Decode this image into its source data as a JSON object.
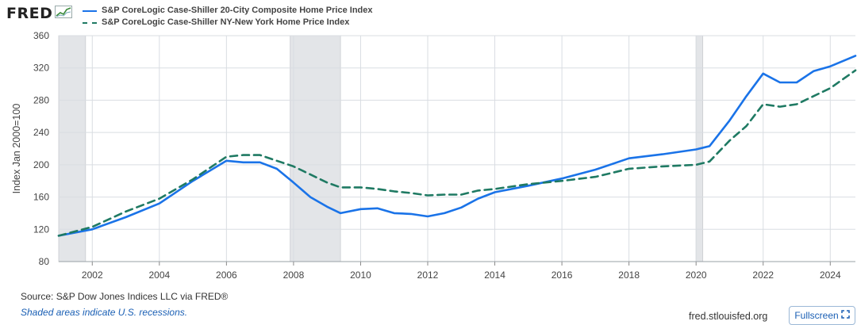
{
  "header": {
    "logo_text": "FRED",
    "logo_icon": "fred-chart-icon"
  },
  "footer": {
    "source": "Source: S&P Dow Jones Indices LLC via FRED®",
    "note": "Shaded areas indicate U.S. recessions.",
    "link": "fred.stlouisfed.org",
    "fullscreen_label": "Fullscreen",
    "fullscreen_icon": "fullscreen-icon"
  },
  "colors": {
    "series1": "#1a73e8",
    "series2": "#1f7a63",
    "recession": "#e3e5e8",
    "grid": "#d9dde2"
  },
  "chart_data": {
    "type": "line",
    "ylabel": "Index Jan 2000=100",
    "xlim": [
      2001.0,
      2024.75
    ],
    "ylim": [
      80,
      360
    ],
    "yticks": [
      80,
      120,
      160,
      200,
      240,
      280,
      320,
      360
    ],
    "xticks": [
      "2002",
      "2004",
      "2006",
      "2008",
      "2010",
      "2012",
      "2014",
      "2016",
      "2018",
      "2020",
      "2022",
      "2024"
    ],
    "recessions": [
      [
        2001.0,
        2001.8
      ],
      [
        2007.9,
        2009.4
      ],
      [
        2020.0,
        2020.2
      ]
    ],
    "grid": true,
    "legend_position": "top-left",
    "series": [
      {
        "name": "S&P CoreLogic Case-Shiller 20-City Composite Home Price Index",
        "style": "solid",
        "x": [
          2001.0,
          2002.0,
          2003.0,
          2004.0,
          2005.0,
          2006.0,
          2006.5,
          2007.0,
          2007.5,
          2008.0,
          2008.5,
          2009.0,
          2009.4,
          2010.0,
          2010.5,
          2011.0,
          2011.5,
          2012.0,
          2012.5,
          2013.0,
          2013.5,
          2014.0,
          2015.0,
          2016.0,
          2017.0,
          2018.0,
          2019.0,
          2020.0,
          2020.4,
          2021.0,
          2021.5,
          2022.0,
          2022.5,
          2023.0,
          2023.5,
          2024.0,
          2024.75
        ],
        "values": [
          112,
          120,
          135,
          152,
          180,
          205,
          203,
          203,
          195,
          178,
          160,
          148,
          140,
          145,
          146,
          140,
          139,
          136,
          140,
          147,
          158,
          166,
          174,
          183,
          194,
          208,
          213,
          219,
          223,
          255,
          285,
          313,
          302,
          302,
          316,
          322,
          335
        ]
      },
      {
        "name": "S&P CoreLogic Case-Shiller NY-New York Home Price Index",
        "style": "dashed",
        "x": [
          2001.0,
          2002.0,
          2003.0,
          2004.0,
          2005.0,
          2006.0,
          2006.5,
          2007.0,
          2007.5,
          2008.0,
          2008.5,
          2009.0,
          2009.4,
          2010.0,
          2010.5,
          2011.0,
          2011.5,
          2012.0,
          2012.5,
          2013.0,
          2013.5,
          2014.0,
          2015.0,
          2016.0,
          2017.0,
          2018.0,
          2019.0,
          2020.0,
          2020.4,
          2021.0,
          2021.5,
          2022.0,
          2022.5,
          2023.0,
          2023.5,
          2024.0,
          2024.75
        ],
        "values": [
          112,
          123,
          142,
          158,
          182,
          210,
          212,
          212,
          205,
          198,
          188,
          178,
          172,
          172,
          170,
          167,
          165,
          162,
          163,
          163,
          168,
          170,
          176,
          180,
          185,
          195,
          198,
          200,
          204,
          230,
          248,
          275,
          272,
          275,
          285,
          295,
          317
        ]
      }
    ]
  }
}
